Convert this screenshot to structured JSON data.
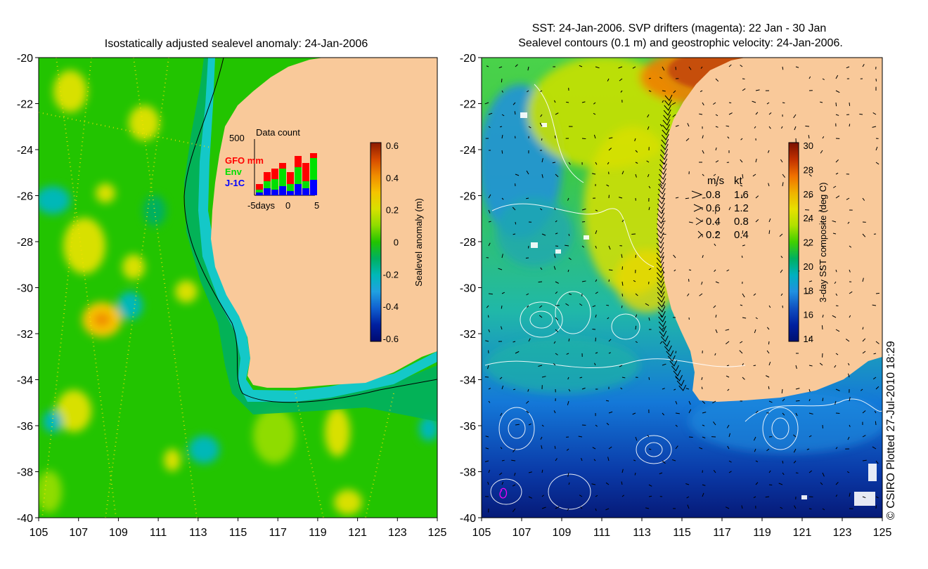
{
  "left_panel": {
    "title": "Isostatically adjusted sealevel anomaly: 24-Jan-2006",
    "y_ticks": [
      "-20",
      "-22",
      "-24",
      "-26",
      "-28",
      "-30",
      "-32",
      "-34",
      "-36",
      "-38",
      "-40"
    ],
    "x_ticks": [
      "105",
      "107",
      "109",
      "111",
      "113",
      "115",
      "117",
      "119",
      "121",
      "123",
      "125"
    ],
    "colorbar": {
      "label": "Sealevel anomaly (m)",
      "ticks": [
        "0.6",
        "0.4",
        "0.2",
        "0",
        "-0.2",
        "-0.4",
        "-0.6"
      ],
      "colors": [
        "#8b1a00",
        "#d64a00",
        "#f08c00",
        "#f5c400",
        "#d8e000",
        "#8fdc00",
        "#22c400",
        "#00b060",
        "#00b8b8",
        "#20a0e0",
        "#1060d0",
        "#0020a0",
        "#000a70"
      ]
    },
    "inset": {
      "title": "Data count",
      "y_max_label": "500",
      "legend": [
        {
          "label": "GFO mm",
          "color": "#ff0000"
        },
        {
          "label": "Env",
          "color": "#00e000"
        },
        {
          "label": "J-1C",
          "color": "#0000ff"
        }
      ],
      "x_labels": [
        "-5days",
        "0",
        "5"
      ]
    }
  },
  "right_panel": {
    "title_line1": "SST: 24-Jan-2006. SVP drifters (magenta): 22 Jan - 30 Jan",
    "title_line2": "Sealevel contours (0.1 m) and geostrophic velocity: 24-Jan-2006.",
    "y_ticks": [
      "-20",
      "-22",
      "-24",
      "-26",
      "-28",
      "-30",
      "-32",
      "-34",
      "-36",
      "-38",
      "-40"
    ],
    "x_ticks": [
      "105",
      "107",
      "109",
      "111",
      "113",
      "115",
      "117",
      "119",
      "121",
      "123",
      "125"
    ],
    "colorbar": {
      "label": "3-day SST composite (deg C)",
      "ticks": [
        "30",
        "28",
        "26",
        "24",
        "22",
        "20",
        "18",
        "16",
        "14"
      ],
      "colors": [
        "#7a1000",
        "#c03000",
        "#f07000",
        "#f0b000",
        "#e8e000",
        "#b0e000",
        "#40d000",
        "#00b060",
        "#00b0c0",
        "#2090e0",
        "#1050c0",
        "#0020a0",
        "#001070"
      ]
    },
    "velocity_legend": {
      "headers": [
        "m/s",
        "kt"
      ],
      "rows": [
        {
          "ms": "0.8",
          "kt": "1.6"
        },
        {
          "ms": "0.6",
          "kt": "1.2"
        },
        {
          "ms": "0.4",
          "kt": "0.8"
        },
        {
          "ms": "0.2",
          "kt": "0.4"
        }
      ]
    }
  },
  "credit": "© CSIRO Plotted 27-Jul-2010 18:29",
  "colors": {
    "land": "#f9c99a",
    "coast_strip": "#14c8c8",
    "shelf_edge": "#18a0a0"
  }
}
